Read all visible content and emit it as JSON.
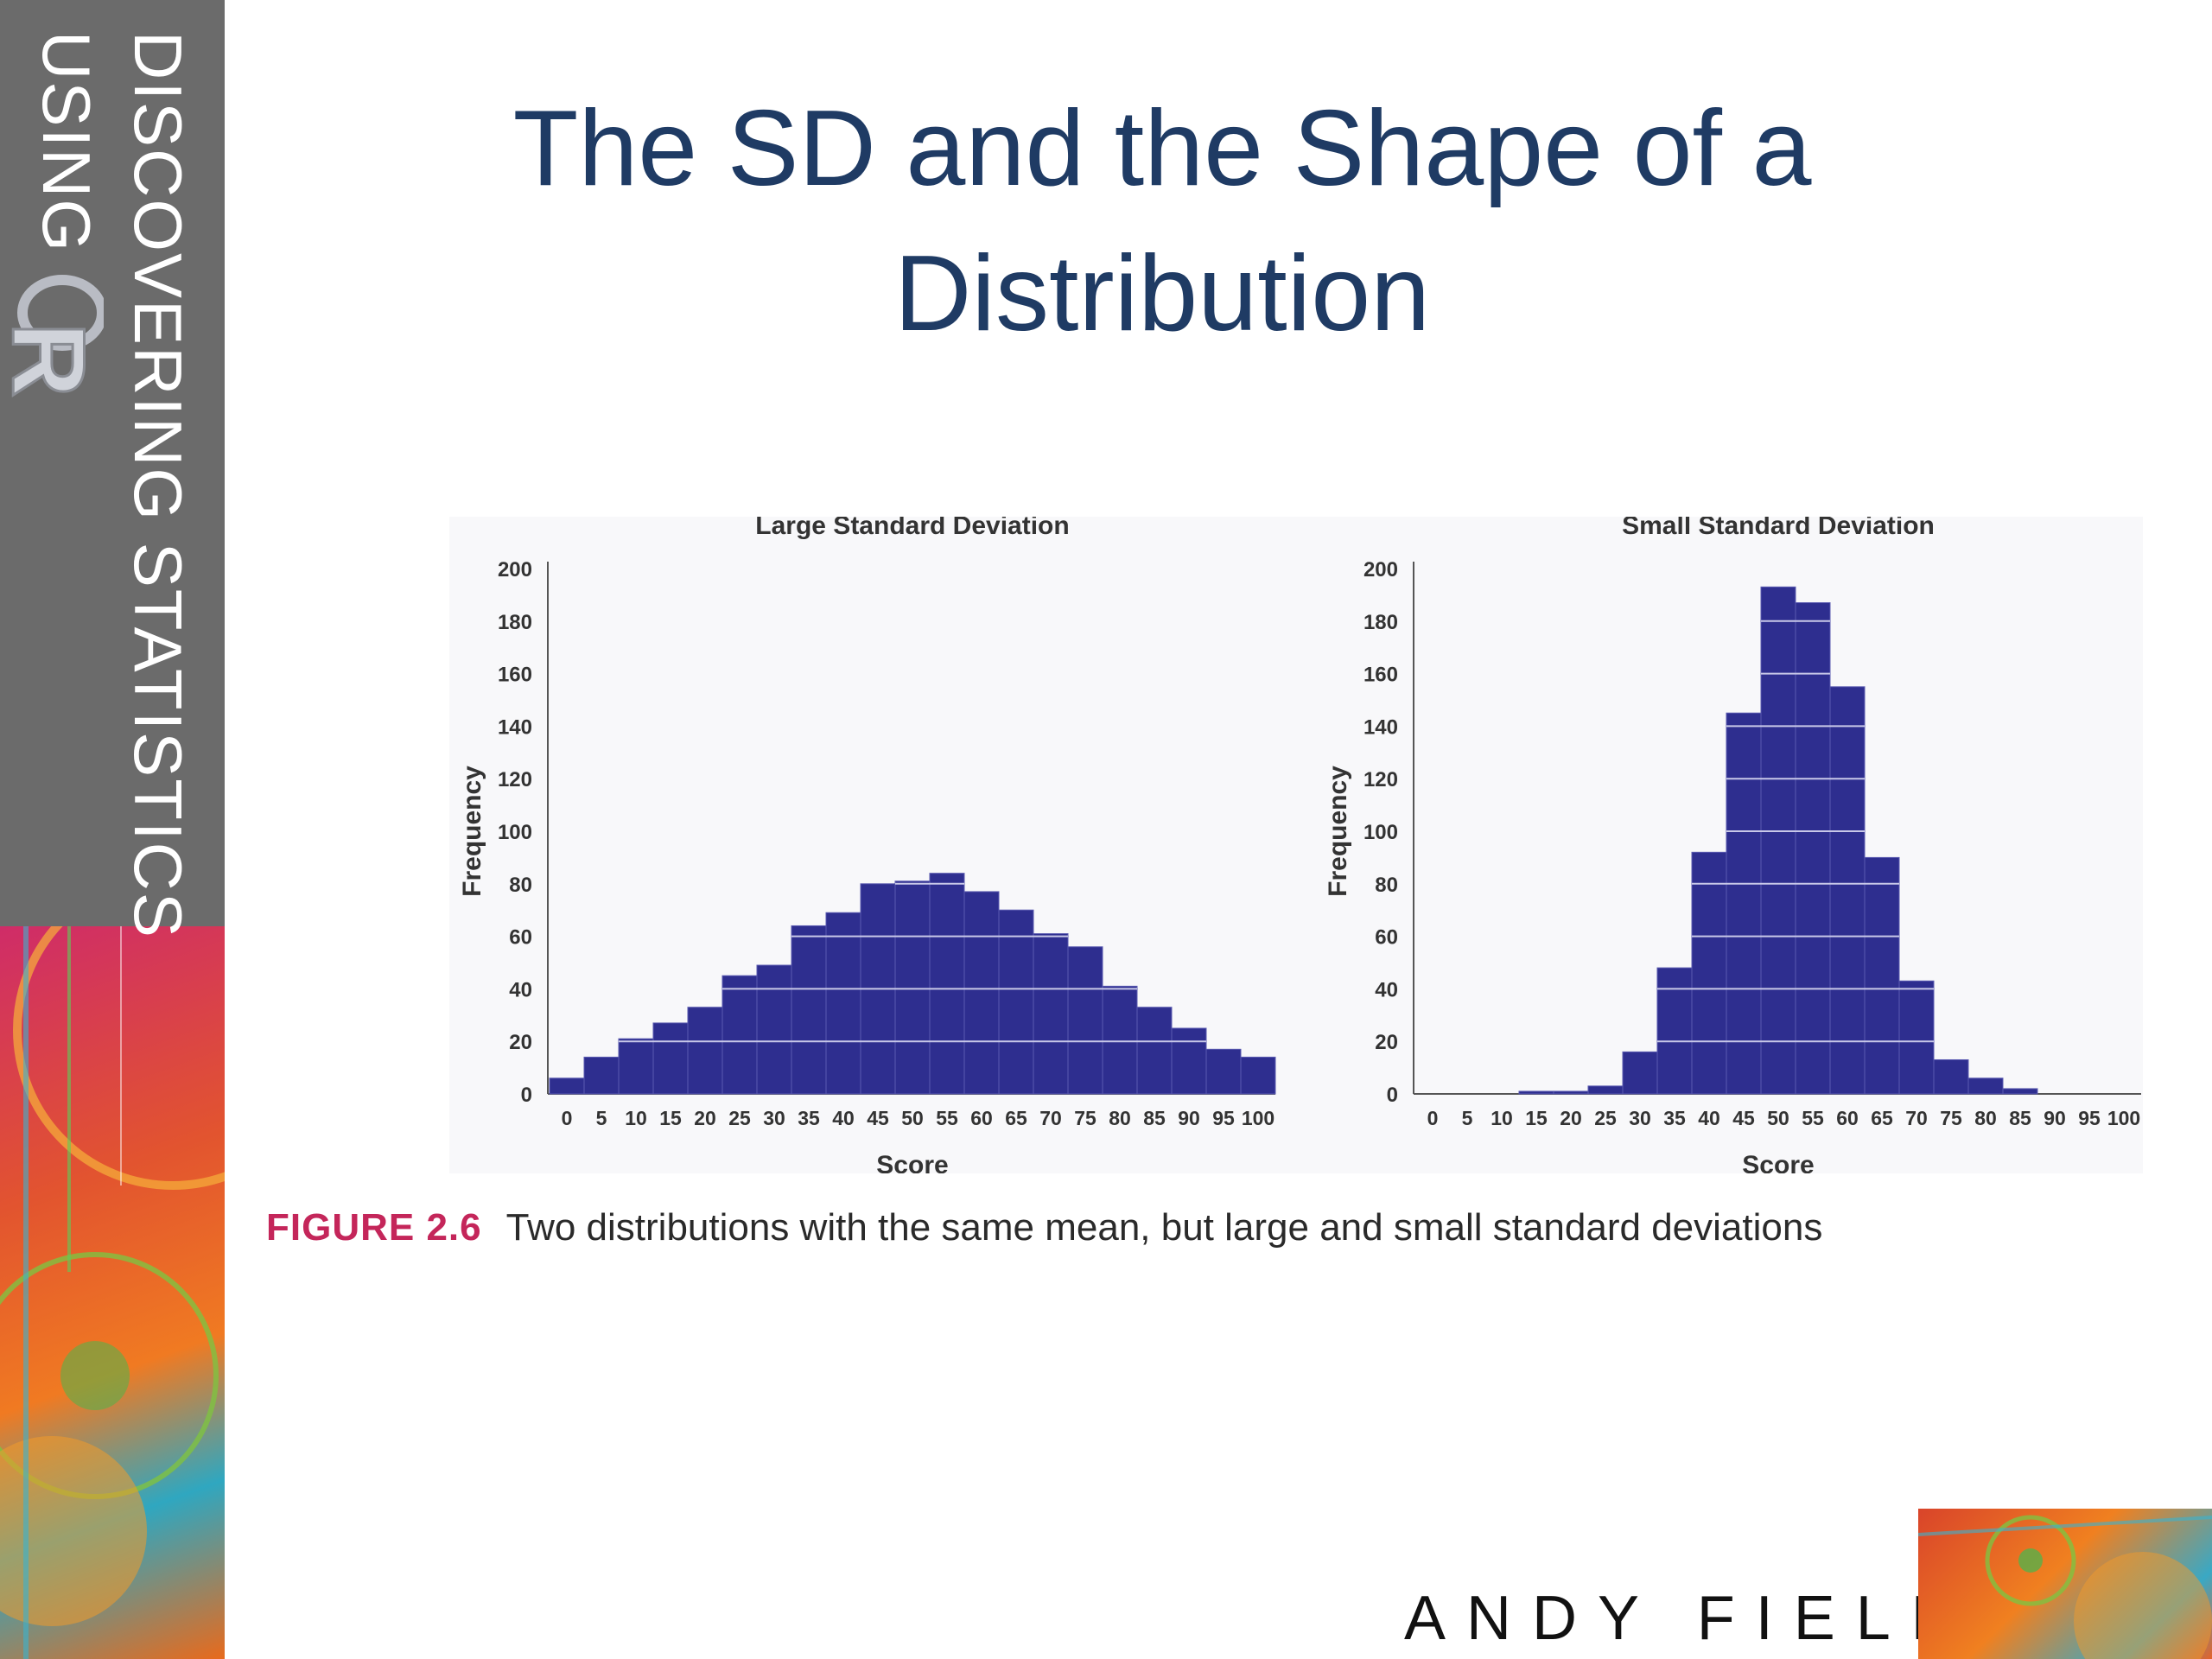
{
  "sidebar": {
    "brand_line1": "DISCOVERING STATISTICS",
    "brand_line2": "USING",
    "logo_letter": "R"
  },
  "title": "The SD and the Shape of a Distribution",
  "caption": {
    "label": "FIGURE 2.6",
    "text": "Two distributions with the same mean, but large and small standard deviations"
  },
  "author": "ANDY FIELD",
  "chart_data": [
    {
      "type": "bar",
      "title": "Large Standard Deviation",
      "xlabel": "Score",
      "ylabel": "Frequency",
      "ylim": [
        0,
        200
      ],
      "yticks": [
        0,
        20,
        40,
        60,
        80,
        100,
        120,
        140,
        160,
        180,
        200
      ],
      "categories": [
        "0",
        "5",
        "10",
        "15",
        "20",
        "25",
        "30",
        "35",
        "40",
        "45",
        "50",
        "55",
        "60",
        "65",
        "70",
        "75",
        "80",
        "85",
        "90",
        "95",
        "100"
      ],
      "values": [
        6,
        14,
        21,
        27,
        33,
        45,
        49,
        64,
        69,
        80,
        81,
        84,
        77,
        70,
        61,
        56,
        41,
        33,
        25,
        17,
        14
      ],
      "bar_color": "#2e2e8f",
      "grid": "white horizontal lines inside bars"
    },
    {
      "type": "bar",
      "title": "Small Standard Deviation",
      "xlabel": "Score",
      "ylabel": "Frequency",
      "ylim": [
        0,
        200
      ],
      "yticks": [
        0,
        20,
        40,
        60,
        80,
        100,
        120,
        140,
        160,
        180,
        200
      ],
      "categories": [
        "0",
        "5",
        "10",
        "15",
        "20",
        "25",
        "30",
        "35",
        "40",
        "45",
        "50",
        "55",
        "60",
        "65",
        "70",
        "75",
        "80",
        "85",
        "90",
        "95",
        "100"
      ],
      "values": [
        0,
        0,
        0,
        1,
        1,
        3,
        16,
        48,
        92,
        145,
        193,
        187,
        155,
        90,
        43,
        13,
        6,
        2,
        0,
        0,
        0
      ],
      "bar_color": "#2e2e8f",
      "grid": "white horizontal lines inside bars"
    }
  ]
}
